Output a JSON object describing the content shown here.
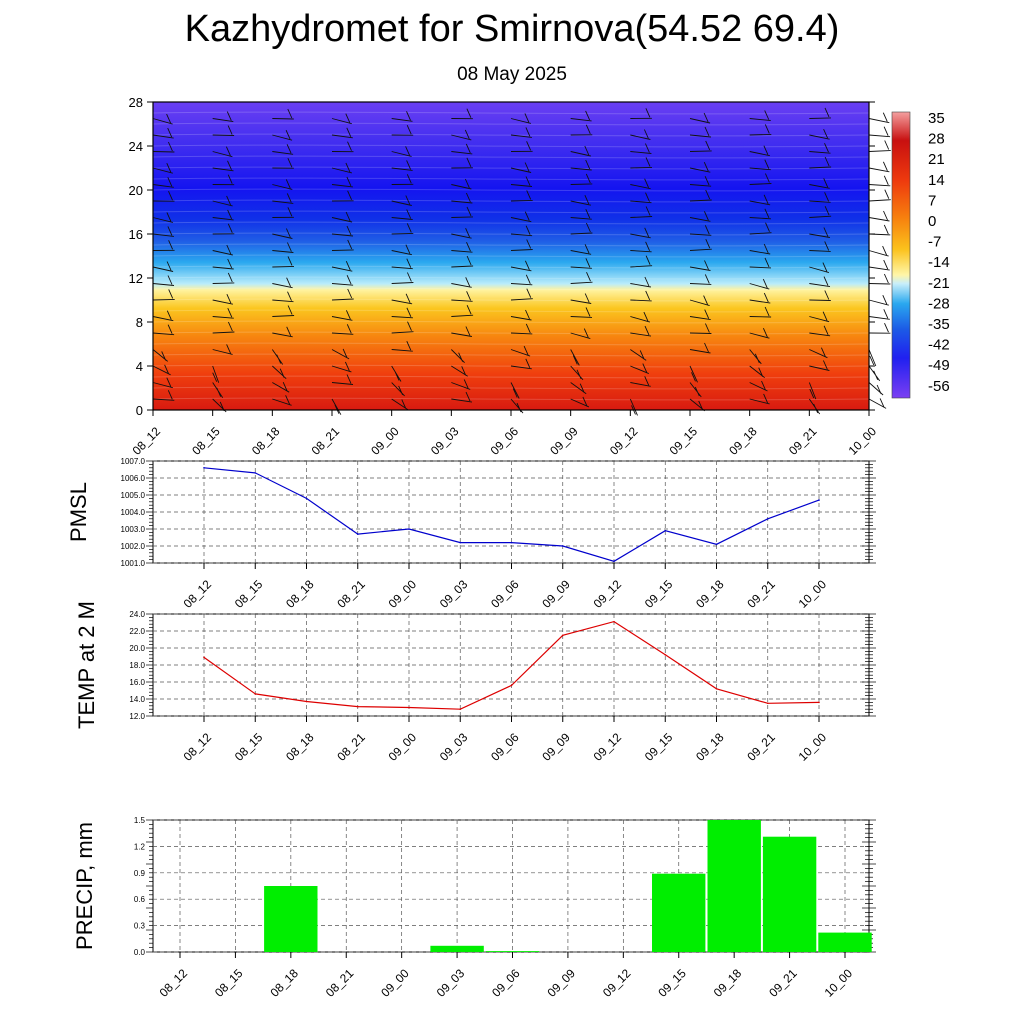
{
  "header": {
    "title": "Kazhydromet for Smirnova(54.52 69.4)",
    "subtitle": "08 May 2025"
  },
  "colors": {
    "pmsl_line": "#0000cc",
    "temp_line": "#dd0000",
    "precip_bar": "#00ee00",
    "grid": "#555555"
  },
  "chart_data": [
    {
      "type": "heatmap",
      "title": "",
      "x": [
        "08_12",
        "08_15",
        "08_18",
        "08_21",
        "09_00",
        "09_03",
        "09_06",
        "09_09",
        "09_12",
        "09_15",
        "09_18",
        "09_21",
        "10_00"
      ],
      "y_ticks": [
        0,
        4,
        8,
        12,
        16,
        20,
        24,
        28
      ],
      "ylim": [
        0,
        28
      ],
      "colorbar": {
        "labels": [
          "35",
          "28",
          "21",
          "14",
          "7",
          "0",
          "-7",
          "-14",
          "-21",
          "-28",
          "-35",
          "-42",
          "-49",
          "-56"
        ],
        "range": [
          -63,
          42
        ]
      },
      "overlay": "wind barbs"
    },
    {
      "type": "line",
      "ylabel": "PMSL",
      "x": [
        "08_12",
        "08_15",
        "08_18",
        "08_21",
        "09_00",
        "09_03",
        "09_06",
        "09_09",
        "09_12",
        "09_15",
        "09_18",
        "09_21",
        "10_00"
      ],
      "values": [
        1006.6,
        1006.3,
        1004.8,
        1002.7,
        1003.0,
        1002.2,
        1002.2,
        1002.0,
        1001.1,
        1002.9,
        1002.1,
        1003.6,
        1004.7
      ],
      "y_ticks": [
        "1001.0",
        "1002.0",
        "1003.0",
        "1004.0",
        "1005.0",
        "1006.0",
        "1007.0"
      ],
      "ylim": [
        1001.0,
        1007.0
      ],
      "grid": true
    },
    {
      "type": "line",
      "ylabel": "TEMP at 2 M",
      "x": [
        "08_12",
        "08_15",
        "08_18",
        "08_21",
        "09_00",
        "09_03",
        "09_06",
        "09_09",
        "09_12",
        "09_15",
        "09_18",
        "09_21",
        "10_00"
      ],
      "values": [
        18.9,
        14.6,
        13.7,
        13.1,
        13.0,
        12.8,
        15.6,
        21.5,
        23.1,
        19.2,
        15.2,
        13.5,
        13.6
      ],
      "y_ticks": [
        "12.0",
        "14.0",
        "16.0",
        "18.0",
        "20.0",
        "22.0",
        "24.0"
      ],
      "ylim": [
        12.0,
        24.0
      ],
      "grid": true
    },
    {
      "type": "bar",
      "ylabel": "PRECIP, mm",
      "categories": [
        "08_12",
        "08_15",
        "08_18",
        "08_21",
        "09_00",
        "09_03",
        "09_06",
        "09_09",
        "09_12",
        "09_15",
        "09_18",
        "09_21",
        "10_00"
      ],
      "values": [
        0,
        0,
        0.75,
        0,
        0,
        0.07,
        0.01,
        0,
        0,
        0.89,
        1.5,
        1.31,
        0.22
      ],
      "y_ticks": [
        "0.0",
        "0.3",
        "0.6",
        "0.9",
        "1.2",
        "1.5"
      ],
      "ylim": [
        0,
        1.5
      ],
      "grid": true
    }
  ]
}
